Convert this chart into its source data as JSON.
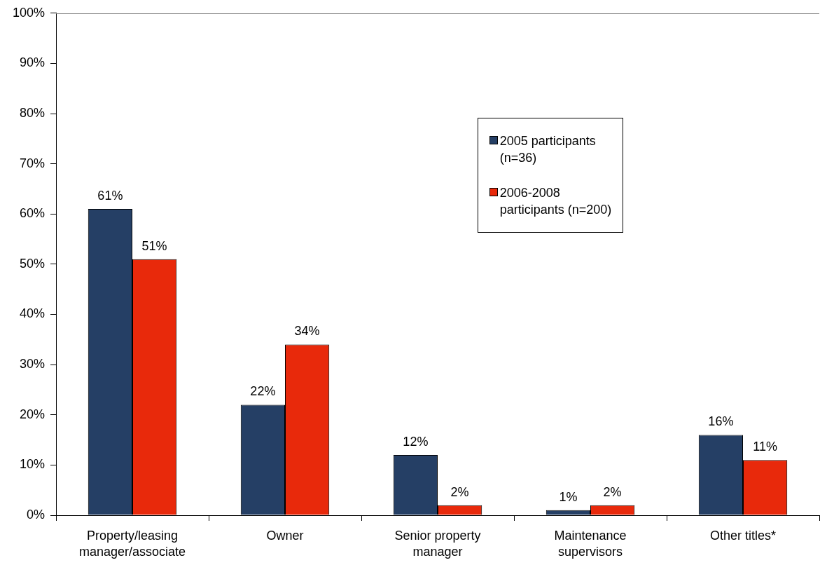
{
  "chart_data": {
    "type": "bar",
    "categories": [
      "Property/leasing manager/associate",
      "Owner",
      "Senior property manager",
      "Maintenance supervisors",
      "Other titles*"
    ],
    "series": [
      {
        "name": "2005 participants (n=36)",
        "color": "#253f65",
        "values": [
          61,
          22,
          12,
          1,
          16
        ],
        "value_labels": [
          "61%",
          "22%",
          "12%",
          "1%",
          "16%"
        ]
      },
      {
        "name": "2006-2008 participants (n=200)",
        "color": "#e8290b",
        "values": [
          51,
          34,
          2,
          2,
          11
        ],
        "value_labels": [
          "51%",
          "34%",
          "2%",
          "2%",
          "11%"
        ]
      }
    ],
    "ylim": [
      0,
      100
    ],
    "yticks": [
      {
        "value": 0,
        "label": "0%"
      },
      {
        "value": 10,
        "label": "10%"
      },
      {
        "value": 20,
        "label": "20%"
      },
      {
        "value": 30,
        "label": "30%"
      },
      {
        "value": 40,
        "label": "40%"
      },
      {
        "value": 50,
        "label": "50%"
      },
      {
        "value": 60,
        "label": "60%"
      },
      {
        "value": 70,
        "label": "70%"
      },
      {
        "value": 80,
        "label": "80%"
      },
      {
        "value": 90,
        "label": "90%"
      },
      {
        "value": 100,
        "label": "100%"
      }
    ],
    "legend": "top right"
  }
}
